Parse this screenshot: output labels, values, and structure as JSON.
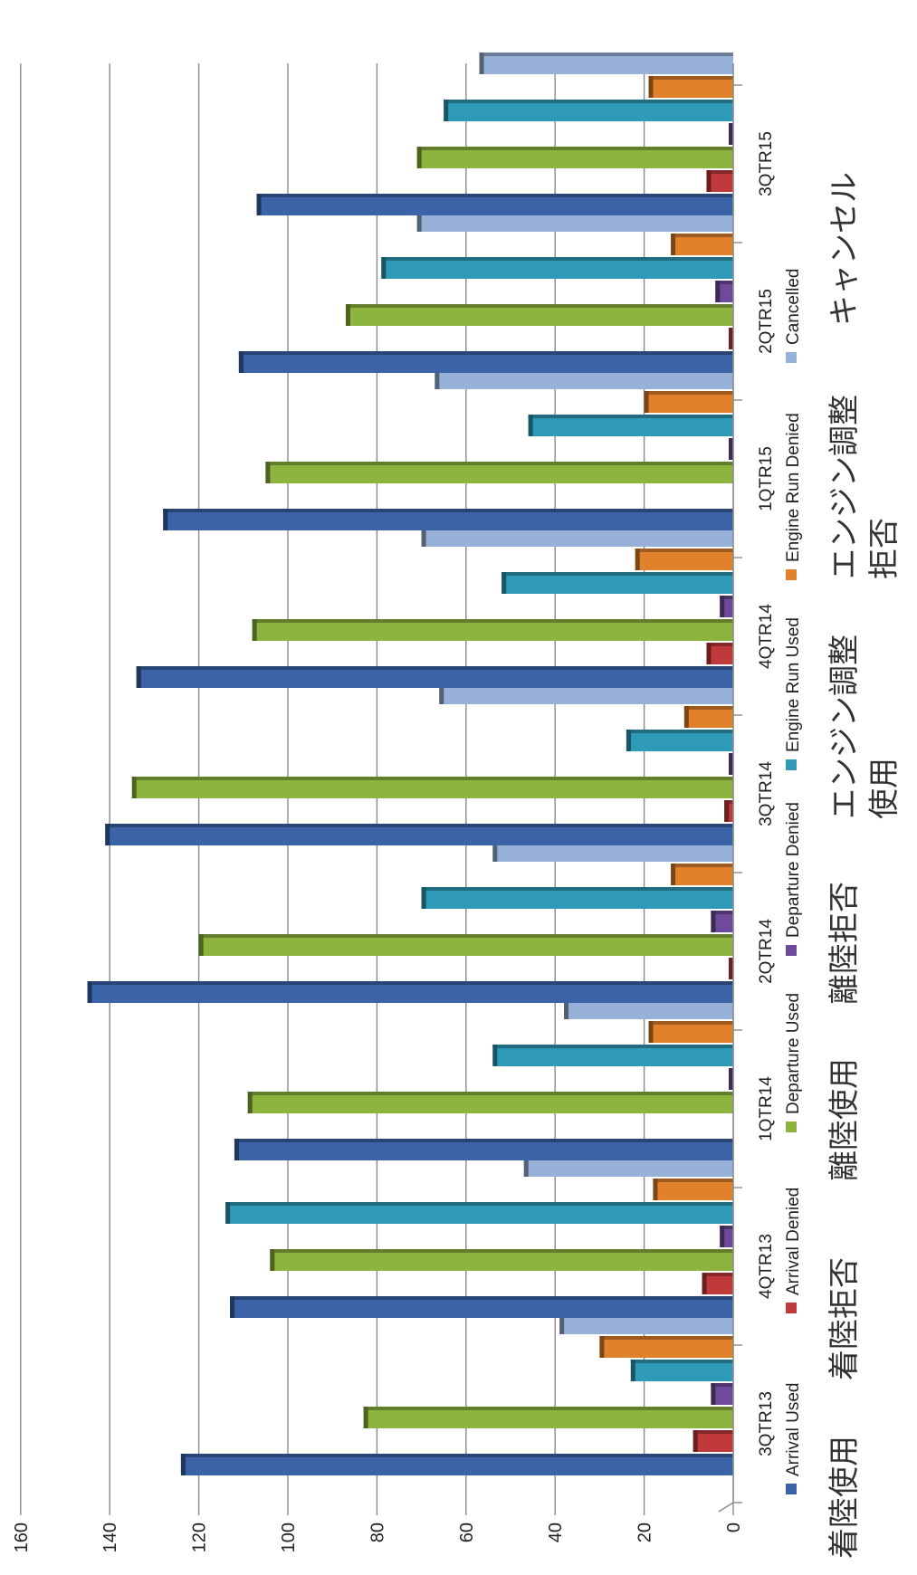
{
  "chart_data": {
    "type": "bar",
    "orientation": "horizontal-rotated",
    "categories": [
      "3QTR13",
      "4QTR13",
      "1QTR14",
      "2QTR14",
      "3QTR14",
      "4QTR14",
      "1QTR15",
      "2QTR15",
      "3QTR15"
    ],
    "series": [
      {
        "name": "Arrival Used",
        "color": "#3b63a8",
        "values": [
          124,
          113,
          112,
          145,
          141,
          134,
          128,
          111,
          107
        ]
      },
      {
        "name": "Arrival Denied",
        "color": "#c0393b",
        "values": [
          9,
          7,
          0,
          1,
          2,
          6,
          0,
          1,
          6
        ]
      },
      {
        "name": "Departure Used",
        "color": "#8db43e",
        "values": [
          83,
          104,
          109,
          120,
          135,
          108,
          105,
          87,
          71
        ]
      },
      {
        "name": "Departure Denied",
        "color": "#6e4a9a",
        "values": [
          5,
          3,
          1,
          5,
          1,
          3,
          1,
          4,
          1
        ]
      },
      {
        "name": "Engine Run Used",
        "color": "#2f9ab8",
        "values": [
          23,
          114,
          54,
          70,
          24,
          52,
          46,
          79,
          65
        ]
      },
      {
        "name": "Engine Run Denied",
        "color": "#e2812c",
        "values": [
          30,
          18,
          19,
          14,
          11,
          22,
          20,
          14,
          19
        ]
      },
      {
        "name": "Cancelled",
        "color": "#97b1d9",
        "values": [
          39,
          47,
          38,
          54,
          66,
          70,
          67,
          71,
          57
        ]
      }
    ],
    "ylim": [
      0,
      160
    ],
    "yticks": [
      0,
      20,
      40,
      60,
      80,
      100,
      120,
      140,
      160
    ],
    "grid": true,
    "legend_position": "bottom",
    "annotations": [
      "着陸使用",
      "着陸拒否",
      "離陸使用",
      "離陸拒否",
      "エンジン調整使用",
      "エンジン調整拒否",
      "キャンセル"
    ]
  }
}
